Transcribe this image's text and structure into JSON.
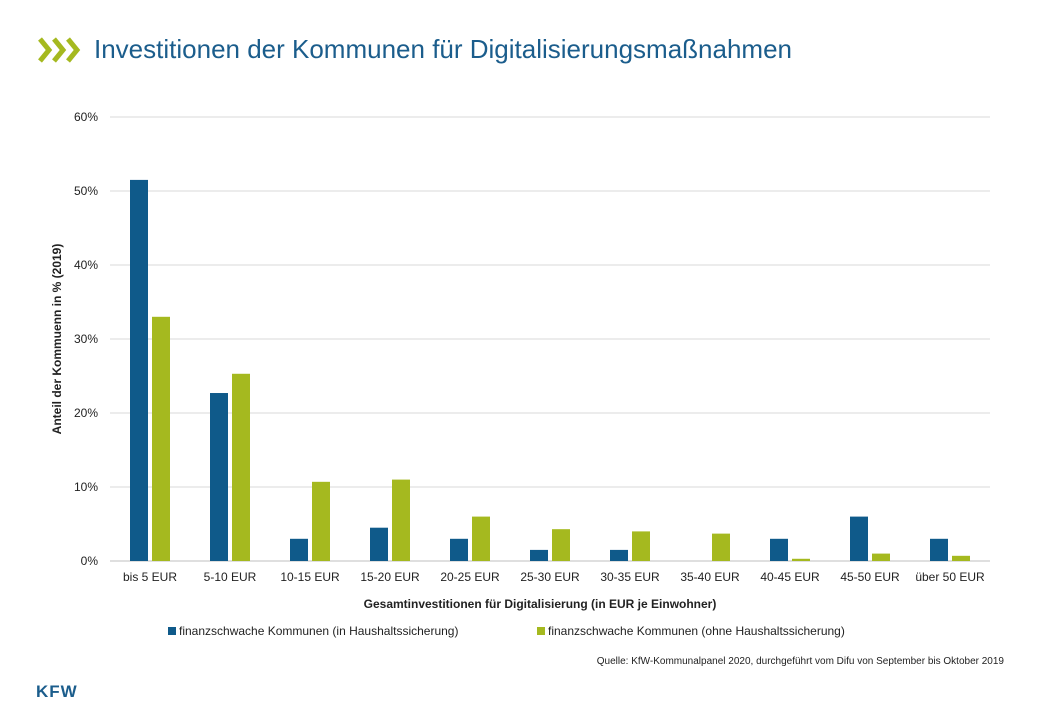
{
  "header": {
    "title": "Investitionen der Kommunen für Digitalisierungsmaßnahmen",
    "icon": "chevrons-icon"
  },
  "colors": {
    "series1": "#0f5a8a",
    "series2": "#a5b91f",
    "title": "#1b5d8c",
    "grid": "#d9d9d9"
  },
  "chart_data": {
    "type": "bar",
    "xlabel": "Gesamtinvestitionen für Digitalisierung (in EUR je Einwohner)",
    "ylabel": "Anteil der Kommuenn in % (2019)",
    "ylim": [
      0,
      60
    ],
    "yticks": [
      0,
      10,
      20,
      30,
      40,
      50,
      60
    ],
    "ytick_labels": [
      "0%",
      "10%",
      "20%",
      "30%",
      "40%",
      "50%",
      "60%"
    ],
    "grid": true,
    "legend_position": "bottom",
    "categories": [
      "bis 5 EUR",
      "5-10 EUR",
      "10-15 EUR",
      "15-20 EUR",
      "20-25 EUR",
      "25-30 EUR",
      "30-35 EUR",
      "35-40 EUR",
      "40-45 EUR",
      "45-50 EUR",
      "über 50 EUR"
    ],
    "series": [
      {
        "name": "finanzschwache Kommunen (in Haushaltssicherung)",
        "values": [
          51.5,
          22.7,
          3.0,
          4.5,
          3.0,
          1.5,
          1.5,
          0,
          3.0,
          6.0,
          3.0
        ]
      },
      {
        "name": "finanzschwache Kommunen (ohne Haushaltssicherung)",
        "values": [
          33.0,
          25.3,
          10.7,
          11.0,
          6.0,
          4.3,
          4.0,
          3.7,
          0.3,
          1.0,
          0.7
        ]
      }
    ]
  },
  "footer": {
    "source": "Quelle: KfW-Kommunalpanel 2020, durchgeführt vom Difu von September bis Oktober 2019",
    "logo": "KFW"
  }
}
